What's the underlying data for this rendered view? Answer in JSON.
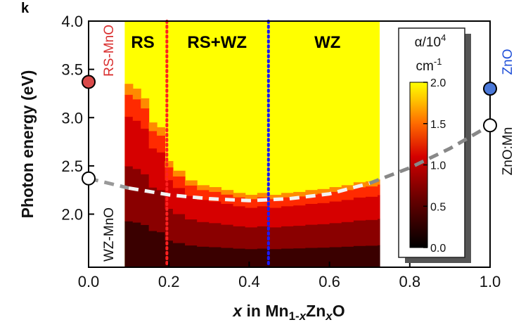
{
  "panel_label": "k",
  "chart_data": {
    "type": "heatmap",
    "title": "",
    "xlabel_parts": [
      "x",
      " in Mn",
      "1-",
      "x",
      "Zn",
      "x",
      "O"
    ],
    "ylabel": "Photon energy (eV)",
    "xlim": [
      0.0,
      1.0
    ],
    "ylim": [
      1.45,
      4.0
    ],
    "xticks": [
      0.0,
      0.2,
      0.4,
      0.6,
      0.8,
      1.0
    ],
    "xtick_labels": [
      "0.0",
      "0.2",
      "0.4",
      "0.6",
      "0.8",
      "1.0"
    ],
    "yticks": [
      2.0,
      2.5,
      3.0,
      3.5,
      4.0
    ],
    "ytick_labels": [
      "2.0",
      "2.5",
      "3.0",
      "3.5",
      "4.0"
    ],
    "heatmap_x_range": [
      0.09,
      0.725
    ],
    "phase_regions": [
      {
        "label": "RS",
        "x_center": 0.135
      },
      {
        "label": "RS+WZ",
        "x_center": 0.32
      },
      {
        "label": "WZ",
        "x_center": 0.595
      }
    ],
    "phase_boundaries": [
      {
        "x": 0.195,
        "color": "#ff2020"
      },
      {
        "x": 0.448,
        "color": "#1a1aff"
      }
    ],
    "colorbar": {
      "title_line1": "α/10",
      "title_sup": "4",
      "title_line2": "cm",
      "title_sup2": "-1",
      "min": 0.0,
      "max": 2.0,
      "ticks": [
        0.0,
        0.5,
        1.0,
        1.5,
        2.0
      ],
      "tick_labels": [
        "0.0",
        "0.5",
        "1.0",
        "1.5",
        "2.0"
      ]
    },
    "bandgap_curve": {
      "x": [
        0.0,
        0.1,
        0.2,
        0.3,
        0.4,
        0.5,
        0.6,
        0.7,
        0.8,
        0.9,
        1.0
      ],
      "y": [
        2.37,
        2.27,
        2.2,
        2.16,
        2.14,
        2.16,
        2.21,
        2.32,
        2.48,
        2.68,
        2.92
      ]
    },
    "marked_points": [
      {
        "label": "RS-MnO",
        "x": 0.0,
        "y": 3.37,
        "fill": "#d94a4a",
        "label_color": "#d93030"
      },
      {
        "label": "WZ-MnO",
        "x": 0.0,
        "y": 2.37,
        "fill": "#ffffff",
        "label_color": "#111111"
      },
      {
        "label": "ZnO",
        "x": 1.0,
        "y": 3.3,
        "fill": "#4a78d8",
        "label_color": "#1f4fd8"
      },
      {
        "label": "ZnO:Mn",
        "x": 1.0,
        "y": 2.92,
        "fill": "#ffffff",
        "label_color": "#111111"
      }
    ],
    "absorption_onset": [
      {
        "x": 0.09,
        "y": 3.35
      },
      {
        "x": 0.11,
        "y": 3.3
      },
      {
        "x": 0.13,
        "y": 3.2
      },
      {
        "x": 0.15,
        "y": 2.95
      },
      {
        "x": 0.17,
        "y": 2.9
      },
      {
        "x": 0.19,
        "y": 2.55
      },
      {
        "x": 0.21,
        "y": 2.45
      },
      {
        "x": 0.24,
        "y": 2.35
      },
      {
        "x": 0.27,
        "y": 2.3
      },
      {
        "x": 0.3,
        "y": 2.28
      },
      {
        "x": 0.33,
        "y": 2.25
      },
      {
        "x": 0.36,
        "y": 2.22
      },
      {
        "x": 0.39,
        "y": 2.2
      },
      {
        "x": 0.42,
        "y": 2.22
      },
      {
        "x": 0.45,
        "y": 2.2
      },
      {
        "x": 0.48,
        "y": 2.22
      },
      {
        "x": 0.51,
        "y": 2.23
      },
      {
        "x": 0.54,
        "y": 2.25
      },
      {
        "x": 0.57,
        "y": 2.26
      },
      {
        "x": 0.6,
        "y": 2.28
      },
      {
        "x": 0.63,
        "y": 2.3
      },
      {
        "x": 0.66,
        "y": 2.33
      },
      {
        "x": 0.69,
        "y": 2.34
      },
      {
        "x": 0.72,
        "y": 2.36
      }
    ]
  }
}
